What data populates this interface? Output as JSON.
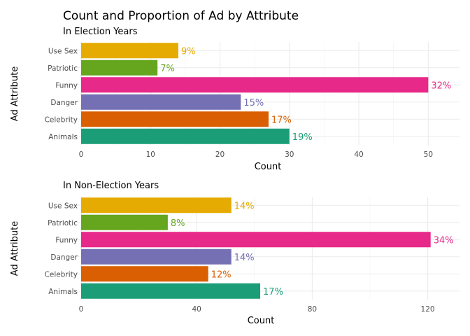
{
  "title": "Count and Proportion of Ad by Attribute",
  "chart_data": [
    {
      "type": "bar",
      "orientation": "horizontal",
      "subtitle": "In Election Years",
      "xlabel": "Count",
      "ylabel": "Ad Attribute",
      "categories": [
        "Animals",
        "Celebrity",
        "Danger",
        "Funny",
        "Patriotic",
        "Use Sex"
      ],
      "values": [
        30,
        27,
        23,
        50,
        11,
        14
      ],
      "labels": [
        "19%",
        "17%",
        "15%",
        "32%",
        "7%",
        "9%"
      ],
      "xlim": [
        0,
        54.5
      ],
      "xticks": [
        0,
        10,
        20,
        30,
        40,
        50
      ],
      "grid": true
    },
    {
      "type": "bar",
      "orientation": "horizontal",
      "subtitle": "In Non-Election Years",
      "xlabel": "Count",
      "ylabel": "Ad Attribute",
      "categories": [
        "Animals",
        "Celebrity",
        "Danger",
        "Funny",
        "Patriotic",
        "Use Sex"
      ],
      "values": [
        62,
        44,
        52,
        121,
        30,
        52
      ],
      "labels": [
        "17%",
        "12%",
        "14%",
        "34%",
        "8%",
        "14%"
      ],
      "xlim": [
        0,
        131
      ],
      "xticks": [
        0,
        40,
        80,
        120
      ],
      "grid": true
    }
  ],
  "colors": {
    "Animals": "#1b9e77",
    "Celebrity": "#d95f02",
    "Danger": "#7570b3",
    "Funny": "#e7298a",
    "Patriotic": "#66a61e",
    "Use Sex": "#e6ab02"
  }
}
